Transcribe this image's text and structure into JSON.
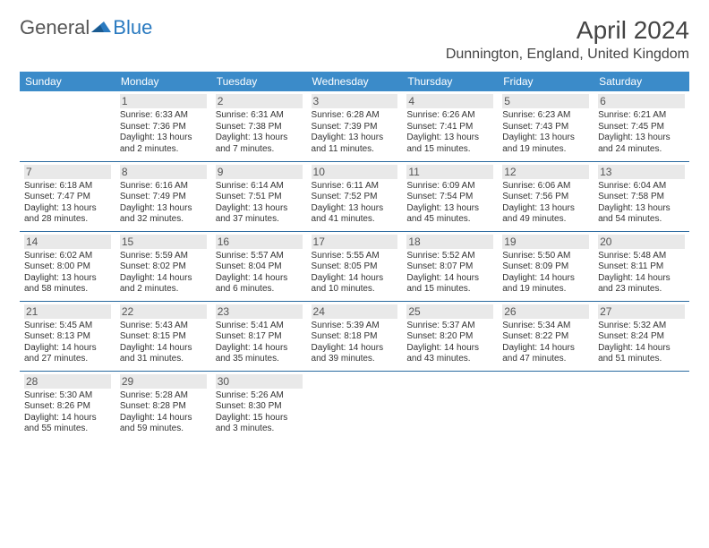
{
  "logo": {
    "text1": "General",
    "text2": "Blue"
  },
  "title": "April 2024",
  "location": "Dunnington, England, United Kingdom",
  "dayHeaders": [
    "Sunday",
    "Monday",
    "Tuesday",
    "Wednesday",
    "Thursday",
    "Friday",
    "Saturday"
  ],
  "colors": {
    "header_bg": "#3b8bc9",
    "header_text": "#ffffff",
    "row_border": "#2a6aa0",
    "daynum_bg": "#e9e9e9",
    "logo_blue": "#2a7ac0"
  },
  "weeks": [
    [
      {
        "n": "",
        "sr": "",
        "ss": "",
        "dl": ""
      },
      {
        "n": "1",
        "sr": "Sunrise: 6:33 AM",
        "ss": "Sunset: 7:36 PM",
        "dl": "Daylight: 13 hours and 2 minutes."
      },
      {
        "n": "2",
        "sr": "Sunrise: 6:31 AM",
        "ss": "Sunset: 7:38 PM",
        "dl": "Daylight: 13 hours and 7 minutes."
      },
      {
        "n": "3",
        "sr": "Sunrise: 6:28 AM",
        "ss": "Sunset: 7:39 PM",
        "dl": "Daylight: 13 hours and 11 minutes."
      },
      {
        "n": "4",
        "sr": "Sunrise: 6:26 AM",
        "ss": "Sunset: 7:41 PM",
        "dl": "Daylight: 13 hours and 15 minutes."
      },
      {
        "n": "5",
        "sr": "Sunrise: 6:23 AM",
        "ss": "Sunset: 7:43 PM",
        "dl": "Daylight: 13 hours and 19 minutes."
      },
      {
        "n": "6",
        "sr": "Sunrise: 6:21 AM",
        "ss": "Sunset: 7:45 PM",
        "dl": "Daylight: 13 hours and 24 minutes."
      }
    ],
    [
      {
        "n": "7",
        "sr": "Sunrise: 6:18 AM",
        "ss": "Sunset: 7:47 PM",
        "dl": "Daylight: 13 hours and 28 minutes."
      },
      {
        "n": "8",
        "sr": "Sunrise: 6:16 AM",
        "ss": "Sunset: 7:49 PM",
        "dl": "Daylight: 13 hours and 32 minutes."
      },
      {
        "n": "9",
        "sr": "Sunrise: 6:14 AM",
        "ss": "Sunset: 7:51 PM",
        "dl": "Daylight: 13 hours and 37 minutes."
      },
      {
        "n": "10",
        "sr": "Sunrise: 6:11 AM",
        "ss": "Sunset: 7:52 PM",
        "dl": "Daylight: 13 hours and 41 minutes."
      },
      {
        "n": "11",
        "sr": "Sunrise: 6:09 AM",
        "ss": "Sunset: 7:54 PM",
        "dl": "Daylight: 13 hours and 45 minutes."
      },
      {
        "n": "12",
        "sr": "Sunrise: 6:06 AM",
        "ss": "Sunset: 7:56 PM",
        "dl": "Daylight: 13 hours and 49 minutes."
      },
      {
        "n": "13",
        "sr": "Sunrise: 6:04 AM",
        "ss": "Sunset: 7:58 PM",
        "dl": "Daylight: 13 hours and 54 minutes."
      }
    ],
    [
      {
        "n": "14",
        "sr": "Sunrise: 6:02 AM",
        "ss": "Sunset: 8:00 PM",
        "dl": "Daylight: 13 hours and 58 minutes."
      },
      {
        "n": "15",
        "sr": "Sunrise: 5:59 AM",
        "ss": "Sunset: 8:02 PM",
        "dl": "Daylight: 14 hours and 2 minutes."
      },
      {
        "n": "16",
        "sr": "Sunrise: 5:57 AM",
        "ss": "Sunset: 8:04 PM",
        "dl": "Daylight: 14 hours and 6 minutes."
      },
      {
        "n": "17",
        "sr": "Sunrise: 5:55 AM",
        "ss": "Sunset: 8:05 PM",
        "dl": "Daylight: 14 hours and 10 minutes."
      },
      {
        "n": "18",
        "sr": "Sunrise: 5:52 AM",
        "ss": "Sunset: 8:07 PM",
        "dl": "Daylight: 14 hours and 15 minutes."
      },
      {
        "n": "19",
        "sr": "Sunrise: 5:50 AM",
        "ss": "Sunset: 8:09 PM",
        "dl": "Daylight: 14 hours and 19 minutes."
      },
      {
        "n": "20",
        "sr": "Sunrise: 5:48 AM",
        "ss": "Sunset: 8:11 PM",
        "dl": "Daylight: 14 hours and 23 minutes."
      }
    ],
    [
      {
        "n": "21",
        "sr": "Sunrise: 5:45 AM",
        "ss": "Sunset: 8:13 PM",
        "dl": "Daylight: 14 hours and 27 minutes."
      },
      {
        "n": "22",
        "sr": "Sunrise: 5:43 AM",
        "ss": "Sunset: 8:15 PM",
        "dl": "Daylight: 14 hours and 31 minutes."
      },
      {
        "n": "23",
        "sr": "Sunrise: 5:41 AM",
        "ss": "Sunset: 8:17 PM",
        "dl": "Daylight: 14 hours and 35 minutes."
      },
      {
        "n": "24",
        "sr": "Sunrise: 5:39 AM",
        "ss": "Sunset: 8:18 PM",
        "dl": "Daylight: 14 hours and 39 minutes."
      },
      {
        "n": "25",
        "sr": "Sunrise: 5:37 AM",
        "ss": "Sunset: 8:20 PM",
        "dl": "Daylight: 14 hours and 43 minutes."
      },
      {
        "n": "26",
        "sr": "Sunrise: 5:34 AM",
        "ss": "Sunset: 8:22 PM",
        "dl": "Daylight: 14 hours and 47 minutes."
      },
      {
        "n": "27",
        "sr": "Sunrise: 5:32 AM",
        "ss": "Sunset: 8:24 PM",
        "dl": "Daylight: 14 hours and 51 minutes."
      }
    ],
    [
      {
        "n": "28",
        "sr": "Sunrise: 5:30 AM",
        "ss": "Sunset: 8:26 PM",
        "dl": "Daylight: 14 hours and 55 minutes."
      },
      {
        "n": "29",
        "sr": "Sunrise: 5:28 AM",
        "ss": "Sunset: 8:28 PM",
        "dl": "Daylight: 14 hours and 59 minutes."
      },
      {
        "n": "30",
        "sr": "Sunrise: 5:26 AM",
        "ss": "Sunset: 8:30 PM",
        "dl": "Daylight: 15 hours and 3 minutes."
      },
      {
        "n": "",
        "sr": "",
        "ss": "",
        "dl": ""
      },
      {
        "n": "",
        "sr": "",
        "ss": "",
        "dl": ""
      },
      {
        "n": "",
        "sr": "",
        "ss": "",
        "dl": ""
      },
      {
        "n": "",
        "sr": "",
        "ss": "",
        "dl": ""
      }
    ]
  ]
}
